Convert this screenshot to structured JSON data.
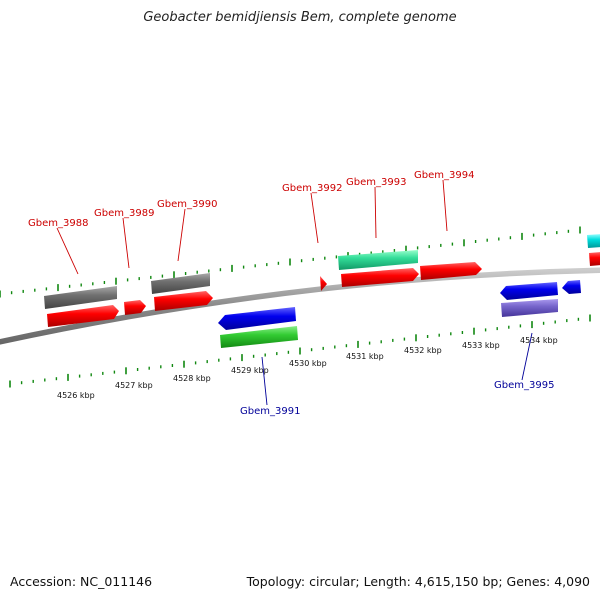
{
  "title": "Geobacter bemidjiensis Bem, complete genome",
  "footer": {
    "accession": "Accession: NC_011146",
    "summary": "Topology: circular; Length: 4,615,150 bp; Genes: 4,090"
  },
  "scale_labels": [
    "4526 kbp",
    "4527 kbp",
    "4528 kbp",
    "4529 kbp",
    "4530 kbp",
    "4531 kbp",
    "4532 kbp",
    "4533 kbp",
    "4534 kbp"
  ],
  "gene_labels": {
    "forward": [
      "Gbem_3988",
      "Gbem_3989",
      "Gbem_3990",
      "Gbem_3992",
      "Gbem_3993",
      "Gbem_3994"
    ],
    "reverse": [
      "Gbem_3991",
      "Gbem_3995"
    ]
  },
  "colors": {
    "forward_cds": "#ff0000",
    "reverse_cds": "#0000ee",
    "forward_label": "#cc0000",
    "reverse_label": "#000099",
    "grey_feature": "#707070",
    "teal_feature": "#33dd99",
    "green_feature": "#33cc33",
    "purple_feature": "#7766cc",
    "cyan_feature": "#00dddd",
    "backbone": "#888888",
    "ticks": "#118811"
  }
}
